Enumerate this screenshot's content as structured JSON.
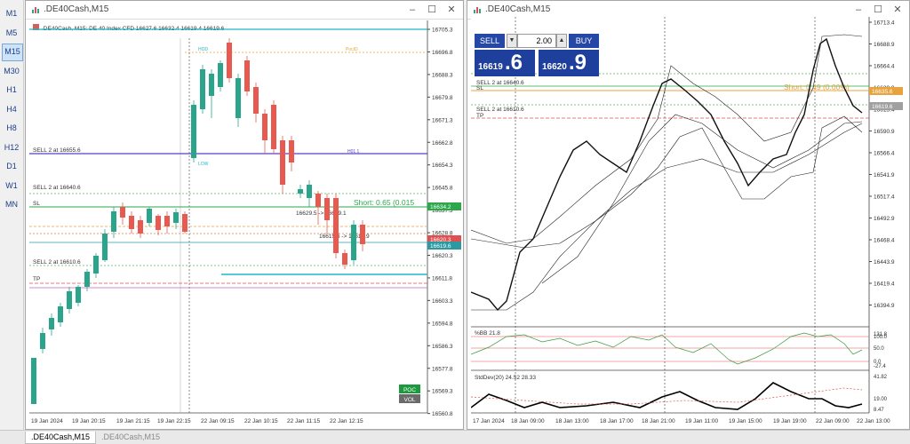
{
  "timeframes": [
    "M1",
    "M5",
    "M15",
    "M30",
    "H1",
    "H4",
    "H8",
    "H12",
    "D1",
    "W1",
    "MN"
  ],
  "active_timeframe": "M15",
  "win1": {
    "title": ".DE40Cash,M15",
    "header": ".DE40Cash, M15:  DE 40 Index CFD   16627.6 16632.4 16619.4 16619.6",
    "price_labels": [
      "16705.3",
      "16696.8",
      "16688.3",
      "16679.8",
      "16671.3",
      "16662.8",
      "16654.3",
      "16645.8",
      "16637.3",
      "16628.8",
      "16620.3",
      "16611.8",
      "16603.3",
      "16594.8",
      "16586.3",
      "16577.8",
      "16569.3",
      "16560.8"
    ],
    "time_labels": [
      "19 Jan 2024",
      "19 Jan 20:15",
      "19 Jan 21:15",
      "19 Jan 22:15",
      "22 Jan 09:15",
      "22 Jan 10:15",
      "22 Jan 11:15",
      "22 Jan 12:15"
    ],
    "sell1": "SELL 2 at 16655.6",
    "sell2": "SELL 2 at 16640.6",
    "sell3": "SELL 2 at 16610.6",
    "sl": "SL",
    "tp": "TP",
    "short_text": "Short: 0.65  (0.015",
    "trade1": "16629.5 -> 16629.1",
    "trade2": "16619.6 -> 16619.9",
    "badge_green": "16634.2",
    "badge_red": "16620.3",
    "badge_teal": "16619.6",
    "poc": "POC",
    "vol": "VOL",
    "lbl_hod": "HOD",
    "lbl_pod": "PocID",
    "lbl_low": "LOW",
    "lbl_h1": "H01 1"
  },
  "win2": {
    "title": ".DE40Cash,M15",
    "sell_label": "SELL",
    "buy_label": "BUY",
    "volume": "2.00",
    "sell_small": "16619",
    "sell_big": ".6",
    "buy_small": "16620",
    "buy_big": ".9",
    "sell2": "SELL 2 at 16640.6",
    "sell3": "SELL 2 at 16610.6",
    "sl": "SL",
    "tp": "TP",
    "short_text": "Short: 0.49  (0.00%)",
    "badge_orange": "16635.6",
    "badge_grey": "16619.6",
    "price_labels": [
      "16713.4",
      "16688.9",
      "16664.4",
      "16639.9",
      "16615.4",
      "16590.9",
      "16566.4",
      "16541.9",
      "16517.4",
      "16492.9",
      "16468.4",
      "16443.9",
      "16419.4",
      "16394.9"
    ],
    "time_labels": [
      "17 Jan 2024",
      "18 Jan 09:00",
      "18 Jan 13:00",
      "18 Jan 17:00",
      "18 Jan 21:00",
      "19 Jan 11:00",
      "19 Jan 15:00",
      "19 Jan 19:00",
      "22 Jan 09:00",
      "22 Jan 13:00"
    ],
    "bb_label": "%BB 21.8",
    "bb_levels": [
      "131.8",
      "100.0",
      "50.0",
      "0.0",
      "-27.4"
    ],
    "sd_label": "StdDev(20) 24.52 28.33",
    "sd_levels": [
      "41.82",
      "19.00",
      "8.47"
    ]
  },
  "bottom_tabs": [
    ".DE40Cash,M15",
    ".DE40Cash,M15"
  ]
}
